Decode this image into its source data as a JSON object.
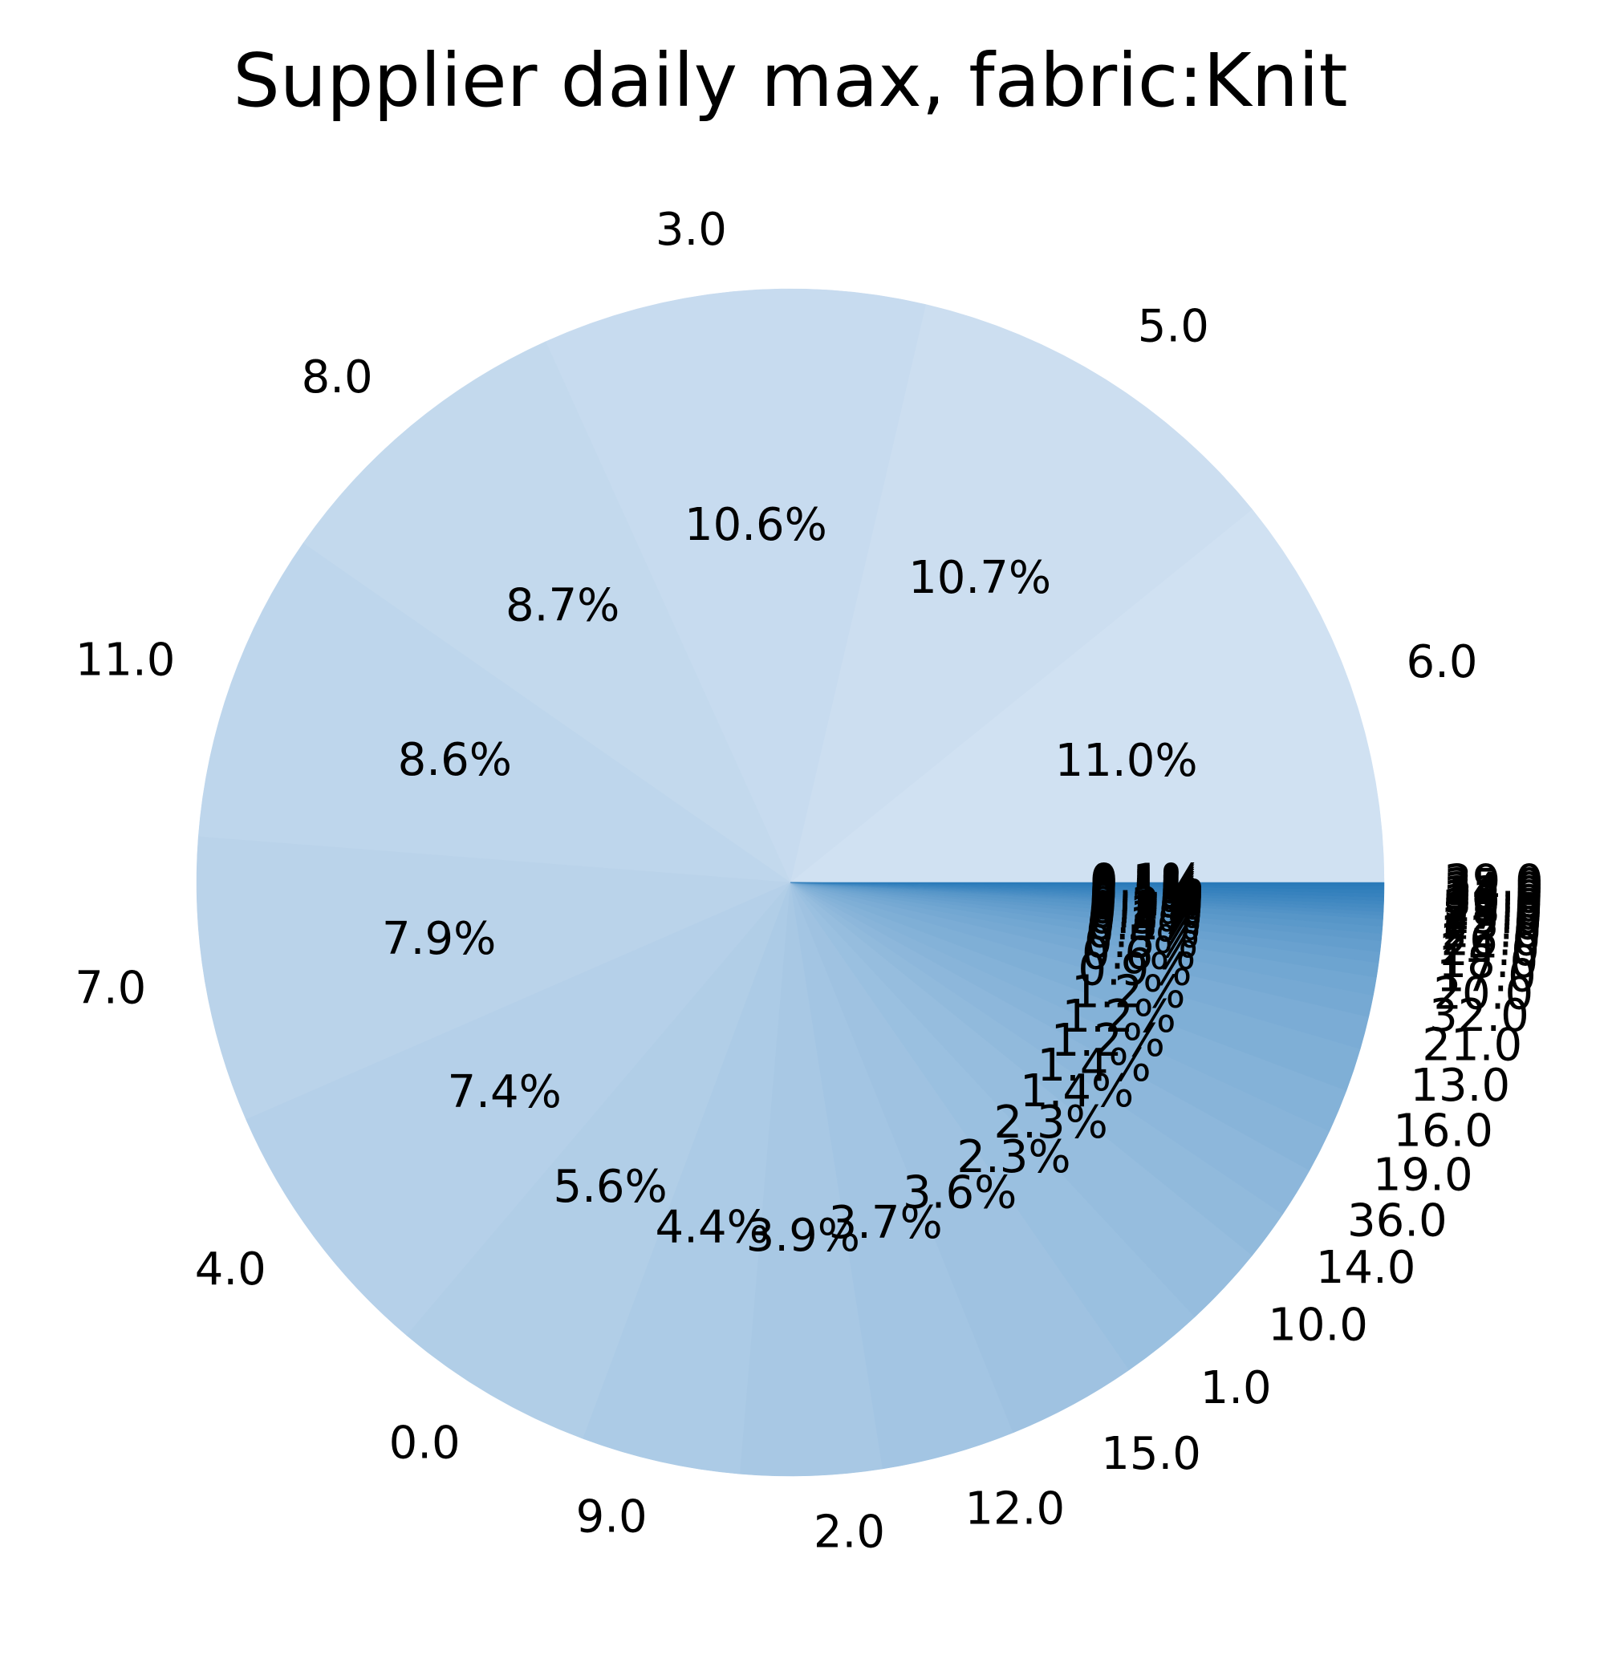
{
  "chart_data": {
    "type": "pie",
    "title": "Supplier daily max, fabric:Knit",
    "categories": [
      "6.0",
      "5.0",
      "3.0",
      "8.0",
      "11.0",
      "7.0",
      "4.0",
      "0.0",
      "9.0",
      "2.0",
      "12.0",
      "15.0",
      "1.0",
      "10.0",
      "14.0",
      "36.0",
      "19.0",
      "16.0",
      "13.0",
      "21.0",
      "32.0",
      "20.0",
      "17.0",
      "18.0",
      "24.0",
      "26.0",
      "22.0",
      "23.0",
      "25.0",
      "27.0",
      "28.0",
      "29.0",
      "30.0",
      "31.0",
      "33.0",
      "34.0",
      "35.0",
      "39.0"
    ],
    "values": [
      11.0,
      10.7,
      10.6,
      8.7,
      8.6,
      7.9,
      7.4,
      5.6,
      4.4,
      3.9,
      3.7,
      3.6,
      2.3,
      2.3,
      1.4,
      1.4,
      1.2,
      1.2,
      1.2,
      0.9,
      0.6,
      0.5,
      0.4,
      0.3,
      0.3,
      0.2,
      0.2,
      0.2,
      0.1,
      0.1,
      0.1,
      0.1,
      0.1,
      0.1,
      0.1,
      0.1,
      0.1,
      0.1
    ],
    "pct_labels": [
      "11.0%",
      "10.7%",
      "10.6%",
      "8.7%",
      "8.6%",
      "7.9%",
      "7.4%",
      "5.6%",
      "4.4%",
      "3.9%",
      "3.7%",
      "3.6%",
      "2.3%",
      "2.3%",
      "1.4%",
      "1.4%",
      "1.2%",
      "1.2%",
      "1.2%",
      "0.9%",
      "0.6%",
      "0.5%",
      "0.4%",
      "0.3%",
      "0.3%",
      "0.2%",
      "0.2%",
      "0.2%",
      "0.1%",
      "0.1%",
      "0.1%",
      "0.1%",
      "0.1%",
      "0.1%",
      "0.1%",
      "0.1%",
      "0.1%",
      "0.1%"
    ],
    "start_angle_deg": 0,
    "direction": "counterclockwise",
    "colormap": "Blues",
    "color_light": "#d0e1f2",
    "color_dark": "#2a7ab9"
  }
}
